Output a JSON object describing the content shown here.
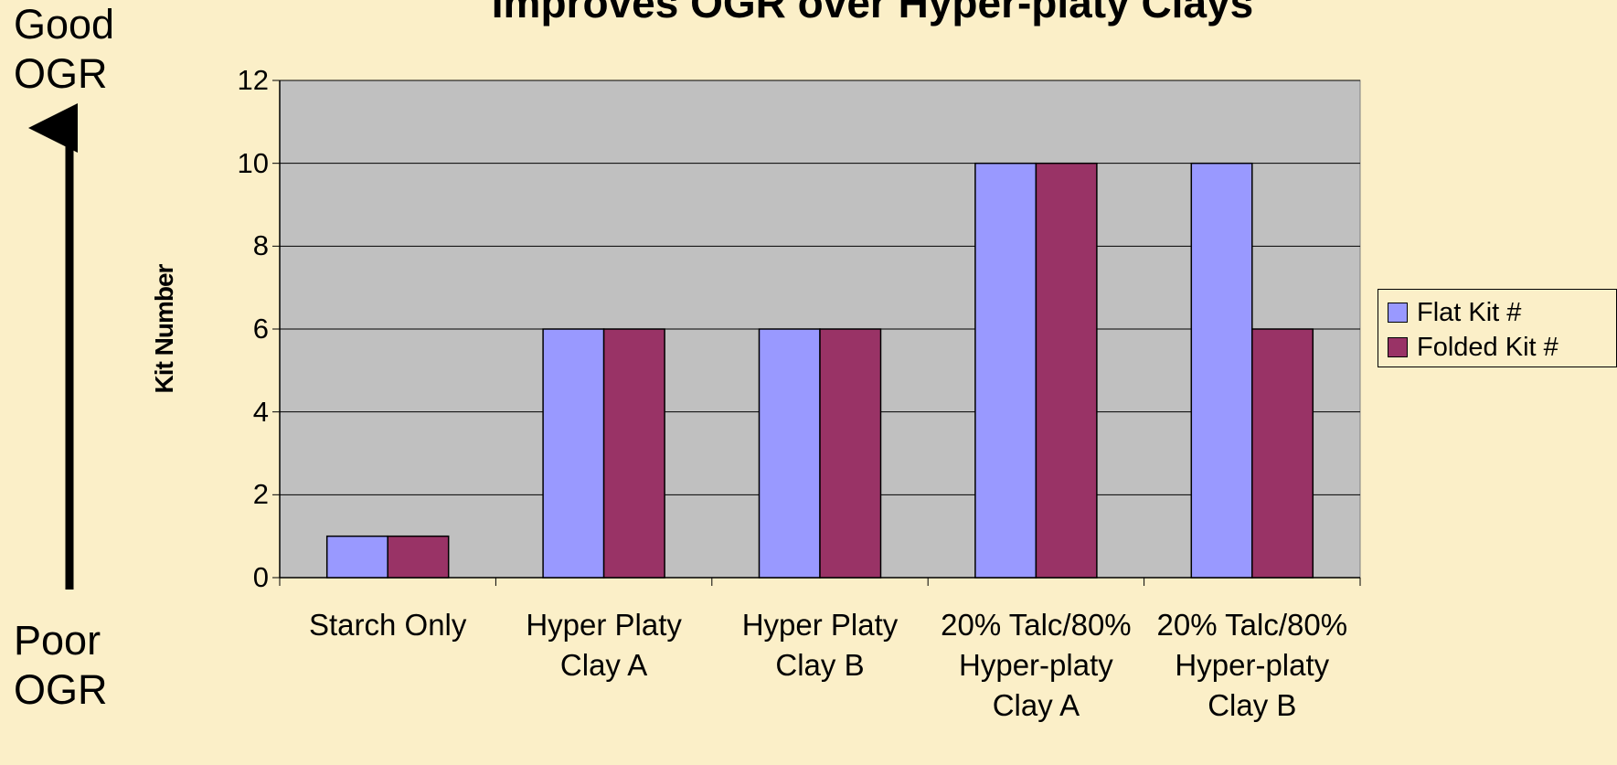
{
  "chart_data": {
    "type": "bar",
    "title": "Improves OGR over Hyper-platy Clays",
    "y_label": "Kit Number",
    "annotations": [
      "Good OGR",
      "Poor OGR"
    ],
    "categories": [
      "Starch Only",
      "Hyper Platy Clay A",
      "Hyper Platy Clay B",
      "20% Talc/80% Hyper-platy Clay A",
      "20% Talc/80% Hyper-platy Clay B"
    ],
    "series": [
      {
        "name": "Flat Kit #",
        "color": "#9999ff",
        "values": [
          1,
          6,
          6,
          10,
          10
        ]
      },
      {
        "name": "Folded Kit #",
        "color": "#993366",
        "values": [
          1,
          6,
          6,
          10,
          6
        ]
      }
    ],
    "ylim": [
      0,
      12
    ],
    "yticks": [
      0,
      2,
      4,
      6,
      8,
      10,
      12
    ],
    "grid": true,
    "legend": "right"
  }
}
